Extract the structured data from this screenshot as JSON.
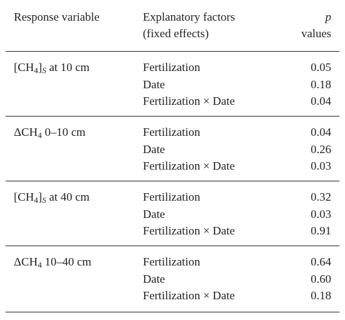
{
  "header": {
    "response_variable": "Response variable",
    "explanatory_factors": [
      "Explanatory factors",
      "(fixed effects)"
    ],
    "p_values": [
      "p",
      "values"
    ]
  },
  "groups": [
    {
      "response_variable": [
        {
          "text": "[CH"
        },
        {
          "text": "4",
          "sub": true
        },
        {
          "text": "]"
        },
        {
          "text": "S",
          "sub": true,
          "italic": true
        },
        {
          "text": " at 10 cm"
        }
      ],
      "rows": [
        {
          "factor": "Fertilization",
          "p": "0.05"
        },
        {
          "factor": "Date",
          "p": "0.18"
        },
        {
          "factor": "Fertilization × Date",
          "p": "0.04"
        }
      ]
    },
    {
      "response_variable": [
        {
          "text": "ΔCH"
        },
        {
          "text": "4",
          "sub": true
        },
        {
          "text": " 0–10 cm"
        }
      ],
      "rows": [
        {
          "factor": "Fertilization",
          "p": "0.04"
        },
        {
          "factor": "Date",
          "p": "0.26"
        },
        {
          "factor": "Fertilization × Date",
          "p": "0.03"
        }
      ]
    },
    {
      "response_variable": [
        {
          "text": "[CH"
        },
        {
          "text": "4",
          "sub": true
        },
        {
          "text": "]"
        },
        {
          "text": "S",
          "sub": true,
          "italic": true
        },
        {
          "text": " at 40 cm"
        }
      ],
      "rows": [
        {
          "factor": "Fertilization",
          "p": "0.32"
        },
        {
          "factor": "Date",
          "p": "0.03"
        },
        {
          "factor": "Fertilization × Date",
          "p": "0.91"
        }
      ]
    },
    {
      "response_variable": [
        {
          "text": "ΔCH"
        },
        {
          "text": "4",
          "sub": true
        },
        {
          "text": " 10–40 cm"
        }
      ],
      "rows": [
        {
          "factor": "Fertilization",
          "p": "0.64"
        },
        {
          "factor": "Date",
          "p": "0.60"
        },
        {
          "factor": "Fertilization × Date",
          "p": "0.18"
        }
      ]
    }
  ]
}
